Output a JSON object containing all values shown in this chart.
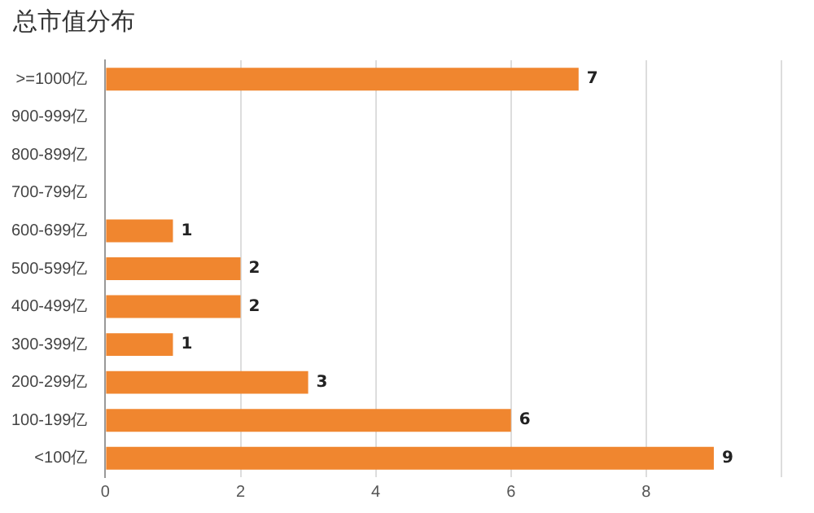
{
  "chart_data": {
    "type": "bar",
    "orientation": "horizontal",
    "title": "总市值分布",
    "categories": [
      ">=1000亿",
      "900-999亿",
      "800-899亿",
      "700-799亿",
      "600-699亿",
      "500-599亿",
      "400-499亿",
      "300-399亿",
      "200-299亿",
      "100-199亿",
      "<100亿"
    ],
    "values": [
      7,
      0,
      0,
      0,
      1,
      2,
      2,
      1,
      3,
      6,
      9
    ],
    "value_labels": [
      "7",
      null,
      null,
      null,
      "1",
      "2",
      "2",
      "1",
      "3",
      "6",
      "9"
    ],
    "color": "#f0862f",
    "xlim": [
      0,
      10
    ],
    "xticks": [
      0,
      2,
      4,
      6,
      8,
      {
        "value": 10,
        "label": null
      }
    ],
    "grid": "x",
    "legend": false
  }
}
